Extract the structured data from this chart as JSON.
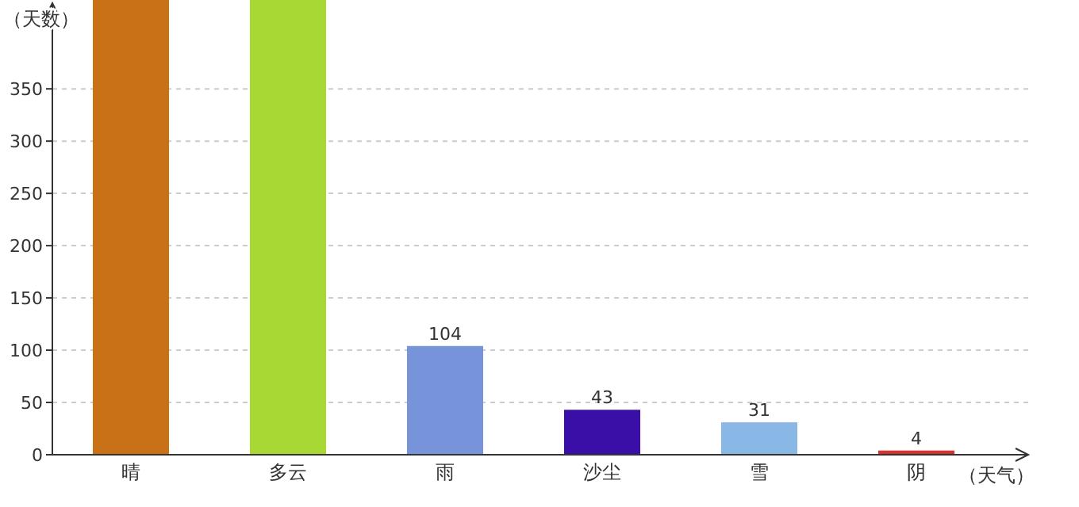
{
  "chart_data": {
    "type": "bar",
    "xlabel": "（天气）",
    "ylabel": "（天数）",
    "categories": [
      "晴",
      "多云",
      "雨",
      "沙尘",
      "雪",
      "阴"
    ],
    "values": [
      435,
      435,
      104,
      43,
      31,
      4
    ],
    "colors": [
      "#c87117",
      "#a8d834",
      "#7793d9",
      "#3a0fa8",
      "#8ab8e6",
      "#d93030"
    ],
    "value_labels": [
      null,
      null,
      "104",
      "43",
      "31",
      "4"
    ],
    "ylim": [
      0,
      435
    ],
    "yticks": [
      0,
      50,
      100,
      150,
      200,
      250,
      300,
      350
    ],
    "grid": "y"
  }
}
